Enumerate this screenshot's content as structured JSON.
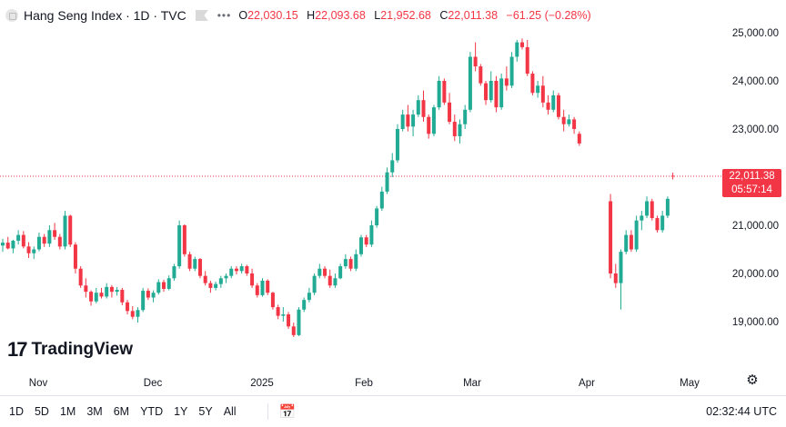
{
  "legend": {
    "symbol": "Hang Seng Index · 1D · TVC",
    "open_key": "O",
    "open": "22,030.15",
    "high_key": "H",
    "high": "22,093.68",
    "low_key": "L",
    "low": "21,952.68",
    "close_key": "C",
    "close": "22,011.38",
    "change": "−61.25 (−0.28%)"
  },
  "price_axis": {
    "ticks": [
      "25,000.00",
      "24,000.00",
      "23,000.00",
      "21,000.00",
      "20,000.00",
      "19,000.00"
    ],
    "last_price": "22,011.38",
    "countdown": "05:57:14"
  },
  "time_axis": {
    "labels": [
      "Nov",
      "Dec",
      "2025",
      "Feb",
      "Mar",
      "Apr",
      "May"
    ]
  },
  "brand": "TradingView",
  "bottom_bar": {
    "ranges": [
      "1D",
      "5D",
      "1M",
      "3M",
      "6M",
      "YTD",
      "1Y",
      "5Y",
      "All"
    ],
    "clock": "02:32:44 UTC"
  },
  "colors": {
    "up": "#22ab94",
    "down": "#f23645",
    "text": "#131722"
  },
  "chart_data": {
    "type": "candlestick",
    "title": "Hang Seng Index · 1D · TVC",
    "y_ticks": [
      19000,
      20000,
      21000,
      23000,
      24000,
      25000
    ],
    "ylim": [
      18300,
      25600
    ],
    "last_price": 22011.38,
    "x_labels": [
      "Nov",
      "Dec",
      "2025",
      "Feb",
      "Mar",
      "Apr",
      "May"
    ],
    "grid": false,
    "candles": [
      [
        20580,
        20720,
        20450,
        20640
      ],
      [
        20640,
        20760,
        20500,
        20520
      ],
      [
        20520,
        20700,
        20420,
        20680
      ],
      [
        20680,
        20900,
        20600,
        20800
      ],
      [
        20800,
        20880,
        20520,
        20560
      ],
      [
        20560,
        20650,
        20320,
        20420
      ],
      [
        20420,
        20560,
        20300,
        20500
      ],
      [
        20500,
        20850,
        20460,
        20760
      ],
      [
        20760,
        20820,
        20550,
        20620
      ],
      [
        20620,
        21000,
        20550,
        20900
      ],
      [
        20900,
        21050,
        20700,
        20760
      ],
      [
        20760,
        20820,
        20500,
        20560
      ],
      [
        20560,
        21300,
        20500,
        21200
      ],
      [
        21200,
        21220,
        20550,
        20600
      ],
      [
        20600,
        20650,
        20000,
        20100
      ],
      [
        20100,
        20150,
        19700,
        19750
      ],
      [
        19750,
        19900,
        19500,
        19620
      ],
      [
        19620,
        19650,
        19330,
        19420
      ],
      [
        19420,
        19700,
        19380,
        19600
      ],
      [
        19600,
        19700,
        19480,
        19520
      ],
      [
        19520,
        19800,
        19480,
        19720
      ],
      [
        19720,
        19760,
        19500,
        19620
      ],
      [
        19620,
        19720,
        19540,
        19660
      ],
      [
        19660,
        19700,
        19340,
        19400
      ],
      [
        19400,
        19450,
        19150,
        19220
      ],
      [
        19220,
        19320,
        19050,
        19100
      ],
      [
        19100,
        19300,
        18980,
        19240
      ],
      [
        19240,
        19700,
        19200,
        19640
      ],
      [
        19640,
        19690,
        19450,
        19500
      ],
      [
        19500,
        19650,
        19400,
        19600
      ],
      [
        19600,
        19880,
        19560,
        19820
      ],
      [
        19820,
        19870,
        19620,
        19680
      ],
      [
        19680,
        19960,
        19650,
        19900
      ],
      [
        19900,
        20200,
        19850,
        20150
      ],
      [
        20150,
        21100,
        20100,
        21000
      ],
      [
        21000,
        21020,
        20350,
        20400
      ],
      [
        20400,
        20450,
        20050,
        20100
      ],
      [
        20100,
        20350,
        20050,
        20300
      ],
      [
        20300,
        20320,
        19900,
        19950
      ],
      [
        19950,
        20050,
        19750,
        19800
      ],
      [
        19800,
        19850,
        19600,
        19700
      ],
      [
        19700,
        19830,
        19650,
        19780
      ],
      [
        19780,
        19950,
        19700,
        19900
      ],
      [
        19900,
        20000,
        19800,
        19950
      ],
      [
        19950,
        20150,
        19900,
        20100
      ],
      [
        20100,
        20150,
        19980,
        20050
      ],
      [
        20050,
        20200,
        20000,
        20150
      ],
      [
        20150,
        20180,
        19950,
        20000
      ],
      [
        20000,
        20100,
        19700,
        19750
      ],
      [
        19750,
        19800,
        19500,
        19550
      ],
      [
        19550,
        19900,
        19520,
        19850
      ],
      [
        19850,
        19880,
        19550,
        19600
      ],
      [
        19600,
        19620,
        19250,
        19300
      ],
      [
        19300,
        19350,
        19050,
        19120
      ],
      [
        19120,
        19300,
        19000,
        19150
      ],
      [
        19150,
        19200,
        18850,
        18900
      ],
      [
        18900,
        18980,
        18680,
        18720
      ],
      [
        18720,
        19300,
        18700,
        19250
      ],
      [
        19250,
        19500,
        19200,
        19450
      ],
      [
        19450,
        19700,
        19400,
        19600
      ],
      [
        19600,
        20000,
        19550,
        19950
      ],
      [
        19950,
        20200,
        19900,
        20100
      ],
      [
        20100,
        20150,
        19900,
        19950
      ],
      [
        19950,
        20080,
        19700,
        19750
      ],
      [
        19750,
        20000,
        19700,
        19900
      ],
      [
        19900,
        20200,
        19880,
        20150
      ],
      [
        20150,
        20400,
        20100,
        20300
      ],
      [
        20300,
        20350,
        20050,
        20100
      ],
      [
        20100,
        20500,
        20050,
        20400
      ],
      [
        20400,
        20800,
        20350,
        20750
      ],
      [
        20750,
        20800,
        20550,
        20600
      ],
      [
        20600,
        21100,
        20550,
        21000
      ],
      [
        21000,
        21400,
        20950,
        21350
      ],
      [
        21350,
        21800,
        21300,
        21700
      ],
      [
        21700,
        22200,
        21650,
        22100
      ],
      [
        22100,
        22500,
        22000,
        22350
      ],
      [
        22350,
        23100,
        22300,
        23000
      ],
      [
        23000,
        23400,
        22950,
        23300
      ],
      [
        23300,
        23500,
        22950,
        23050
      ],
      [
        23050,
        23400,
        22850,
        23300
      ],
      [
        23300,
        23700,
        23250,
        23600
      ],
      [
        23600,
        23800,
        23150,
        23250
      ],
      [
        23250,
        23300,
        22800,
        22900
      ],
      [
        22900,
        23500,
        22850,
        23450
      ],
      [
        23450,
        24100,
        23400,
        24000
      ],
      [
        24000,
        24050,
        23500,
        23550
      ],
      [
        23550,
        23750,
        23100,
        23150
      ],
      [
        23150,
        23300,
        22750,
        22850
      ],
      [
        22850,
        23200,
        22700,
        23100
      ],
      [
        23100,
        23500,
        23000,
        23400
      ],
      [
        23400,
        24600,
        23350,
        24500
      ],
      [
        24500,
        24800,
        24200,
        24300
      ],
      [
        24300,
        24350,
        23900,
        23950
      ],
      [
        23950,
        24000,
        23500,
        23600
      ],
      [
        23600,
        24200,
        23550,
        24000
      ],
      [
        24000,
        24100,
        23350,
        23450
      ],
      [
        23450,
        24150,
        23400,
        24050
      ],
      [
        24050,
        24300,
        23800,
        23900
      ],
      [
        23900,
        24600,
        23850,
        24500
      ],
      [
        24500,
        24850,
        24400,
        24800
      ],
      [
        24800,
        24880,
        24650,
        24700
      ],
      [
        24700,
        24850,
        24100,
        24150
      ],
      [
        24150,
        24200,
        23700,
        23750
      ],
      [
        23750,
        24000,
        23650,
        23900
      ],
      [
        23900,
        24100,
        23450,
        23550
      ],
      [
        23550,
        23700,
        23300,
        23400
      ],
      [
        23400,
        23800,
        23350,
        23700
      ],
      [
        23700,
        23750,
        23200,
        23250
      ],
      [
        23250,
        23400,
        22950,
        23100
      ],
      [
        23100,
        23300,
        23050,
        23200
      ],
      [
        23200,
        23250,
        22900,
        23000
      ],
      [
        22900,
        22950,
        22650,
        22700
      ],
      null,
      null,
      null,
      null,
      null,
      [
        21500,
        21650,
        19900,
        20000
      ],
      [
        20000,
        20200,
        19700,
        19800
      ],
      [
        19800,
        20500,
        19250,
        20450
      ],
      [
        20450,
        20900,
        20400,
        20800
      ],
      [
        20800,
        20900,
        20450,
        20500
      ],
      [
        20500,
        21200,
        20450,
        21100
      ],
      [
        21100,
        21300,
        20900,
        21200
      ],
      [
        21200,
        21600,
        21150,
        21500
      ],
      [
        21500,
        21550,
        21100,
        21150
      ],
      [
        21150,
        21200,
        20850,
        20900
      ],
      [
        20900,
        21300,
        20850,
        21200
      ],
      [
        21200,
        21600,
        21150,
        21550
      ],
      [
        22030.15,
        22093.68,
        21952.68,
        22011.38
      ]
    ]
  }
}
